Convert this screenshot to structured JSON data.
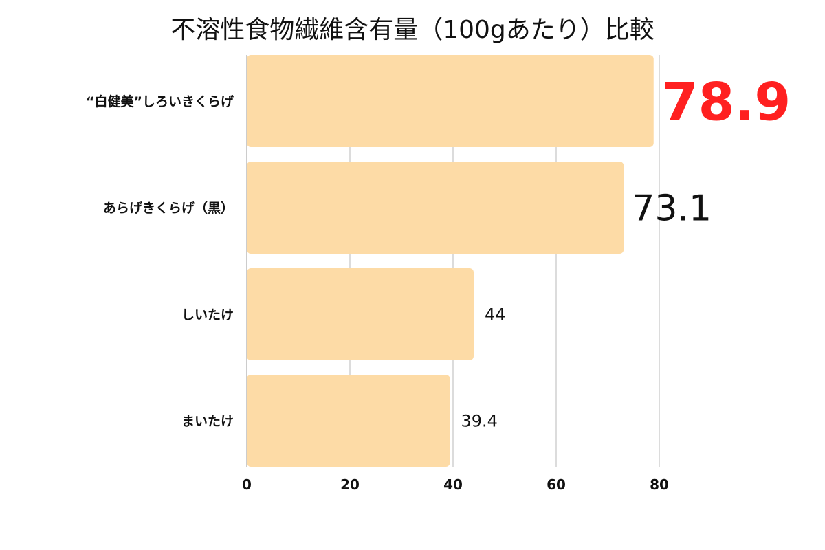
{
  "chart_data": {
    "type": "bar",
    "orientation": "horizontal",
    "title": "不溶性食物繊維含有量（100gあたり）比較",
    "categories": [
      "“白健美”しろいきくらげ",
      "あらげきくらげ（黒）",
      "しいたけ",
      "まいたけ"
    ],
    "values": [
      78.9,
      73.1,
      44,
      39.4
    ],
    "value_labels": [
      "78.9",
      "73.1",
      "44",
      "39.4"
    ],
    "xlim": [
      0,
      80
    ],
    "xticks": [
      "0",
      "20",
      "40",
      "60",
      "80"
    ],
    "grid": true,
    "bar_color": "#FDDBA6",
    "highlight_color": "#FF2020",
    "xlabel": "",
    "ylabel": ""
  }
}
